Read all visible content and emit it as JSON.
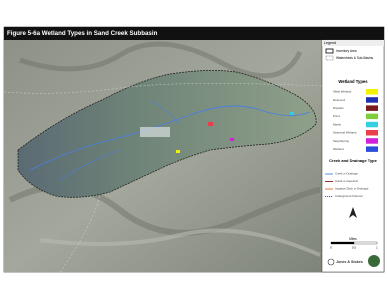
{
  "header": {
    "title": "Figure 5-6a  Wetland Types in Sand Creek Subbasin"
  },
  "legend": {
    "title": "Legend",
    "boundaries": [
      "Inventory Area",
      "Watersheds & Sub-Basins"
    ],
    "wetland_types": {
      "title": "Wetland Types",
      "items": [
        {
          "label": "Alkali Wetland",
          "color": "#f2f200"
        },
        {
          "label": "Reservoir",
          "color": "#1f2fb0"
        },
        {
          "label": "Riparian",
          "color": "#7a1a1a"
        },
        {
          "label": "Pond",
          "color": "#7ccf3a"
        },
        {
          "label": "Marsh",
          "color": "#35d0e0"
        },
        {
          "label": "Seasonal Wetland",
          "color": "#e8404a"
        },
        {
          "label": "Seep/Spring",
          "color": "#d020d8"
        },
        {
          "label": "Wetland",
          "color": "#2a4fd8"
        }
      ]
    },
    "creek_types": {
      "title": "Creek and Drainage Type",
      "items": [
        {
          "label": "Creek or Drainage",
          "color": "#4a7fe0"
        },
        {
          "label": "Canal or Aqueduct",
          "color": "#8a1a1a"
        },
        {
          "label": "Irrigation Ditch or Drainage",
          "color": "#e07030"
        },
        {
          "label": "Underground Channel",
          "color": "#a040c0"
        }
      ]
    },
    "scale": {
      "unit": "Miles",
      "ticks": [
        0,
        0.5,
        1
      ]
    },
    "credit": "Jones & Stokes"
  }
}
